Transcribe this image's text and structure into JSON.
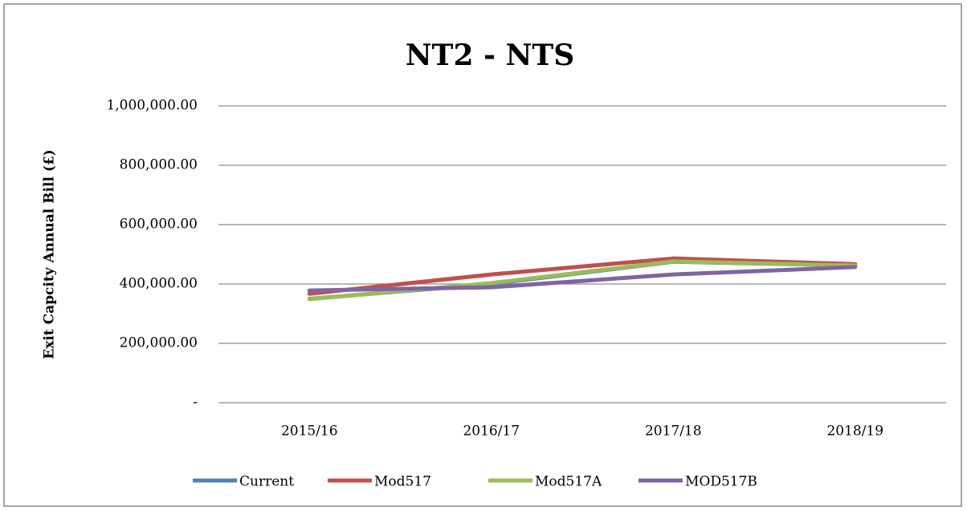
{
  "chart_data": {
    "type": "line",
    "title": "NT2 - NTS",
    "y_label": "Exit Capcity Annual Bill (£)",
    "categories": [
      "2015/16",
      "2016/17",
      "2017/18",
      "2018/19"
    ],
    "series": [
      {
        "name": "Current",
        "color": "#4f81bd",
        "values": [
          350000,
          400000,
          475000,
          462000
        ]
      },
      {
        "name": "Mod517",
        "color": "#c0504d",
        "values": [
          367000,
          432000,
          486000,
          467000
        ]
      },
      {
        "name": "Mod517A",
        "color": "#9bbb59",
        "values": [
          349000,
          403000,
          476000,
          462000
        ]
      },
      {
        "name": "MOD517B",
        "color": "#8064a2",
        "values": [
          378000,
          389000,
          432000,
          457000
        ]
      }
    ],
    "ylim": [
      0,
      1000000
    ],
    "yticks": [
      {
        "value": 0,
        "label": "-"
      },
      {
        "value": 200000,
        "label": "200,000.00"
      },
      {
        "value": 400000,
        "label": "400,000.00"
      },
      {
        "value": 600000,
        "label": "600,000.00"
      },
      {
        "value": 800000,
        "label": "800,000.00"
      },
      {
        "value": 1000000,
        "label": "1,000,000.00"
      }
    ],
    "grid": true,
    "legend": "bottom"
  }
}
